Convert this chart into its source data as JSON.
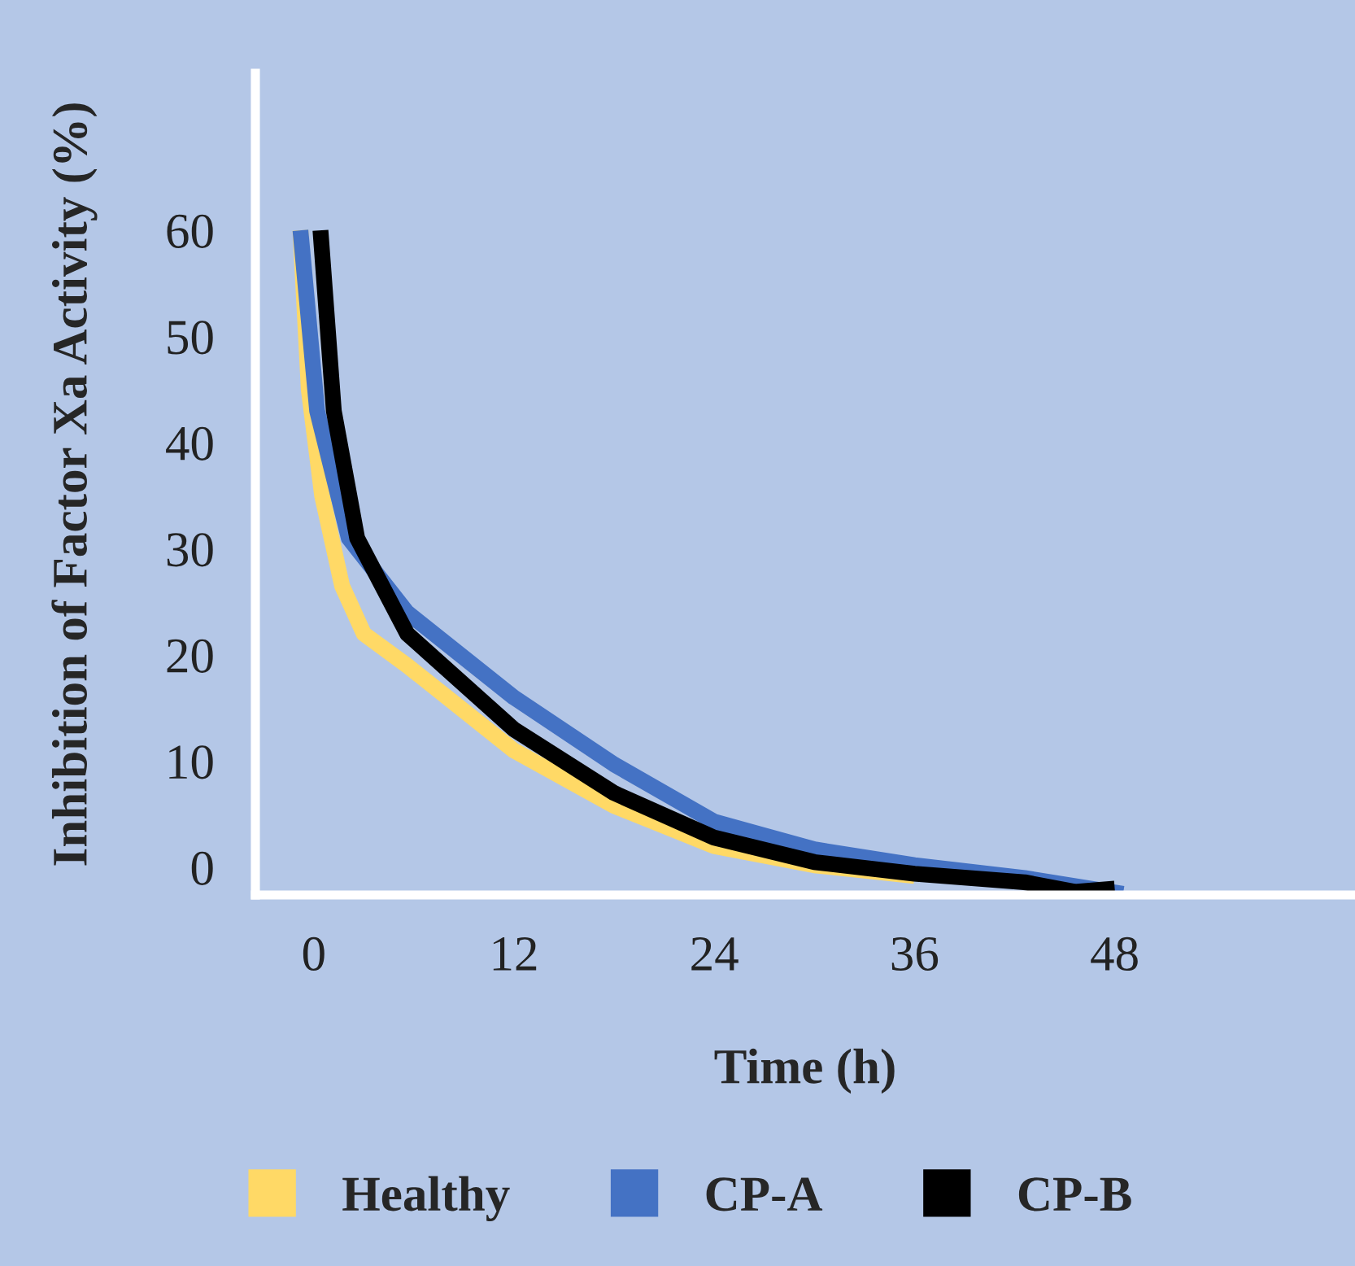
{
  "chart_data": {
    "type": "line",
    "xlabel": "Time (h)",
    "ylabel": "Inhibition of Factor Xa Activity (%)",
    "xlim": [
      -3.5,
      62.4
    ],
    "ylim": [
      -2.6,
      74.8
    ],
    "xticks": [
      0,
      12,
      24,
      36,
      48
    ],
    "yticks": [
      0,
      10,
      20,
      30,
      40,
      50,
      60
    ],
    "grid": false,
    "legend": "bottom",
    "marker": "none",
    "line_style": "solid",
    "series": [
      {
        "name": "Healthy",
        "color": "#ffd966",
        "x": [
          -0.8,
          -0.3,
          0.5,
          1.7,
          3,
          5.6,
          12,
          18,
          24,
          30,
          36
        ],
        "values": [
          60,
          45,
          35,
          26.5,
          22,
          19,
          11,
          5.8,
          2,
          0.2,
          -0.8
        ]
      },
      {
        "name": "CP-A",
        "color": "#4472c4",
        "x": [
          -0.8,
          0.2,
          2.1,
          5.6,
          12,
          18,
          24,
          30,
          36,
          42.6,
          48.5
        ],
        "values": [
          60,
          43,
          31,
          24,
          16,
          9.7,
          4.3,
          1.7,
          0.2,
          -1,
          -2.5
        ]
      },
      {
        "name": "CP-B",
        "color": "#000000",
        "x": [
          0.4,
          1.2,
          2.6,
          5.6,
          12,
          18,
          24,
          30,
          36,
          42.6,
          45.6,
          48
        ],
        "values": [
          60,
          43,
          31,
          22,
          13,
          7,
          2.8,
          0.5,
          -0.6,
          -1.4,
          -2.3,
          -2
        ]
      }
    ]
  }
}
